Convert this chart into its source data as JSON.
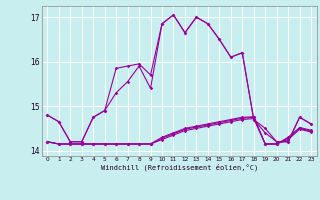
{
  "title": "",
  "xlabel": "Windchill (Refroidissement éolien,°C)",
  "background_color": "#c8eef0",
  "grid_color": "#ffffff",
  "line_color": "#990099",
  "xlim": [
    -0.5,
    23.5
  ],
  "ylim": [
    13.88,
    17.25
  ],
  "yticks": [
    14,
    15,
    16,
    17
  ],
  "ytick_labels": [
    "14",
    "15",
    "16",
    "17"
  ],
  "xticks": [
    0,
    1,
    2,
    3,
    4,
    5,
    6,
    7,
    8,
    9,
    10,
    11,
    12,
    13,
    14,
    15,
    16,
    17,
    18,
    19,
    20,
    21,
    22,
    23
  ],
  "series": [
    {
      "x": [
        0,
        1,
        2,
        3,
        4,
        5,
        6,
        7,
        8,
        9,
        10,
        11,
        12,
        13,
        14,
        15,
        16,
        17,
        18,
        19,
        20,
        21,
        22,
        23
      ],
      "y": [
        14.8,
        14.65,
        14.2,
        14.2,
        14.75,
        14.9,
        15.85,
        15.9,
        15.95,
        15.7,
        16.85,
        17.05,
        16.65,
        17.0,
        16.85,
        16.5,
        16.1,
        16.2,
        14.7,
        14.5,
        14.2,
        14.2,
        14.75,
        14.6
      ]
    },
    {
      "x": [
        0,
        1,
        2,
        3,
        4,
        5,
        6,
        7,
        8,
        9,
        10,
        11,
        12,
        13,
        14,
        15,
        16,
        17,
        18,
        19,
        20,
        21,
        22,
        23
      ],
      "y": [
        14.8,
        14.65,
        14.2,
        14.2,
        14.75,
        14.9,
        15.3,
        15.55,
        15.9,
        15.4,
        16.85,
        17.05,
        16.65,
        17.0,
        16.85,
        16.5,
        16.1,
        16.2,
        14.7,
        14.4,
        14.2,
        14.2,
        14.75,
        14.6
      ]
    },
    {
      "x": [
        0,
        1,
        2,
        3,
        4,
        5,
        6,
        7,
        8,
        9,
        10,
        11,
        12,
        13,
        14,
        15,
        16,
        17,
        18,
        19,
        20,
        21,
        22,
        23
      ],
      "y": [
        14.2,
        14.15,
        14.15,
        14.15,
        14.15,
        14.15,
        14.15,
        14.15,
        14.15,
        14.15,
        14.25,
        14.35,
        14.45,
        14.5,
        14.55,
        14.6,
        14.65,
        14.7,
        14.72,
        14.15,
        14.15,
        14.25,
        14.48,
        14.42
      ]
    },
    {
      "x": [
        0,
        1,
        2,
        3,
        4,
        5,
        6,
        7,
        8,
        9,
        10,
        11,
        12,
        13,
        14,
        15,
        16,
        17,
        18,
        19,
        20,
        21,
        22,
        23
      ],
      "y": [
        14.2,
        14.15,
        14.15,
        14.15,
        14.15,
        14.15,
        14.15,
        14.15,
        14.15,
        14.15,
        14.28,
        14.38,
        14.48,
        14.53,
        14.58,
        14.63,
        14.68,
        14.73,
        14.75,
        14.15,
        14.15,
        14.28,
        14.5,
        14.44
      ]
    },
    {
      "x": [
        0,
        1,
        2,
        3,
        4,
        5,
        6,
        7,
        8,
        9,
        10,
        11,
        12,
        13,
        14,
        15,
        16,
        17,
        18,
        19,
        20,
        21,
        22,
        23
      ],
      "y": [
        14.2,
        14.15,
        14.15,
        14.15,
        14.15,
        14.15,
        14.15,
        14.15,
        14.15,
        14.15,
        14.3,
        14.4,
        14.5,
        14.55,
        14.6,
        14.65,
        14.7,
        14.75,
        14.76,
        14.15,
        14.15,
        14.3,
        14.52,
        14.46
      ]
    }
  ]
}
